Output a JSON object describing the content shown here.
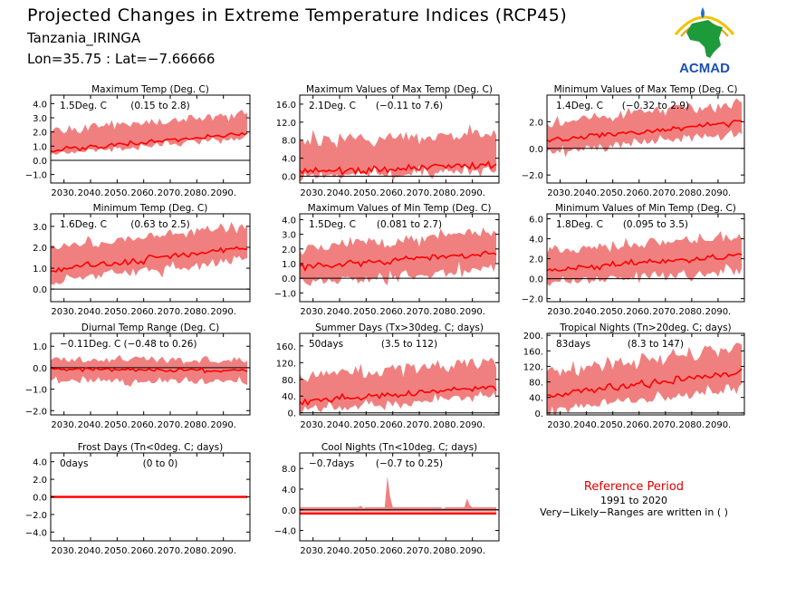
{
  "header": {
    "title": "Projected Changes in Extreme Temperature Indices (RCP45)",
    "region": "Tanzania_IRINGA",
    "coords": "Lon=35.75 : Lat=−7.66666"
  },
  "logo": {
    "text": "ACMAD",
    "icon": "africa-map-logo"
  },
  "reference": {
    "title": "Reference Period",
    "period": "1991 to 2020",
    "note": "Very−Likely−Ranges are written in ( )"
  },
  "colors": {
    "band": "#f08080",
    "line": "#ff0000",
    "zero": "#000000"
  },
  "chart_data": [
    {
      "type": "line",
      "title": "Maximum Temp (Deg. C)",
      "annotation": "1.5Deg. C",
      "range": "(0.15 to 2.8)",
      "x_ticks": [
        "2030.",
        "2040.",
        "2050.",
        "2060.",
        "2070.",
        "2080.",
        "2090."
      ],
      "xlim": [
        2025,
        2100
      ],
      "y_ticks": [
        "4.0",
        "3.0",
        "2.0",
        "1.0",
        "0.0",
        "−1.0"
      ],
      "ylim": [
        -1.6,
        4.6
      ],
      "trend": {
        "start": 0.7,
        "end": 1.9
      },
      "band": {
        "lower": -0.2,
        "upper": 1.3
      }
    },
    {
      "type": "line",
      "title": "Maximum Values of Max Temp (Deg. C)",
      "annotation": "2.1Deg. C",
      "range": "(−0.11 to 7.6)",
      "x_ticks": [
        "2030.",
        "2040.",
        "2050.",
        "2060.",
        "2070.",
        "2080.",
        "2090."
      ],
      "xlim": [
        2025,
        2100
      ],
      "y_ticks": [
        "16.0",
        "12.0",
        "8.0",
        "4.0",
        "0.0"
      ],
      "ylim": [
        -1.5,
        18
      ],
      "trend": {
        "start": 1.0,
        "end": 2.5
      },
      "band": {
        "lower": -1.0,
        "upper": 6.5
      }
    },
    {
      "type": "line",
      "title": "Minimum Values of Max Temp (Deg. C)",
      "annotation": "1.4Deg. C",
      "range": "(−0.32 to 2.9)",
      "x_ticks": [
        "2030.",
        "2040.",
        "2050.",
        "2060.",
        "2070.",
        "2080.",
        "2090."
      ],
      "xlim": [
        2025,
        2100
      ],
      "y_ticks": [
        "2.0",
        "0.0",
        "−2.0"
      ],
      "ylim": [
        -2.6,
        4.0
      ],
      "trend": {
        "start": 0.6,
        "end": 2.0
      },
      "band": {
        "lower": -0.8,
        "upper": 1.3
      }
    },
    {
      "type": "line",
      "title": "Minimum Temp (Deg. C)",
      "annotation": "1.6Deg. C",
      "range": "(0.63 to 2.5)",
      "x_ticks": [
        "2030.",
        "2040.",
        "2050.",
        "2060.",
        "2070.",
        "2080.",
        "2090."
      ],
      "xlim": [
        2025,
        2100
      ],
      "y_ticks": [
        "3.0",
        "2.0",
        "1.0",
        "0.0"
      ],
      "ylim": [
        -0.6,
        3.6
      ],
      "trend": {
        "start": 0.9,
        "end": 2.0
      },
      "band": {
        "lower": -0.5,
        "upper": 1.0
      }
    },
    {
      "type": "line",
      "title": "Maximum Values of Min Temp (Deg. C)",
      "annotation": "1.5Deg. C",
      "range": "(0.081 to 2.7)",
      "x_ticks": [
        "2030.",
        "2040.",
        "2050.",
        "2060.",
        "2070.",
        "2080.",
        "2090."
      ],
      "xlim": [
        2025,
        2100
      ],
      "y_ticks": [
        "4.0",
        "3.0",
        "2.0",
        "1.0",
        "0.0",
        "−1.0"
      ],
      "ylim": [
        -1.6,
        4.4
      ],
      "trend": {
        "start": 0.7,
        "end": 1.8
      },
      "band": {
        "lower": -1.0,
        "upper": 1.3
      }
    },
    {
      "type": "line",
      "title": "Minimum Values of Min Temp (Deg. C)",
      "annotation": "1.8Deg. C",
      "range": "(0.095 to 3.5)",
      "x_ticks": [
        "2030.",
        "2040.",
        "2050.",
        "2060.",
        "2070.",
        "2080.",
        "2090."
      ],
      "xlim": [
        2025,
        2100
      ],
      "y_ticks": [
        "6.0",
        "4.0",
        "2.0",
        "0.0",
        "−2.0"
      ],
      "ylim": [
        -2.3,
        6.5
      ],
      "trend": {
        "start": 0.9,
        "end": 2.3
      },
      "band": {
        "lower": -1.3,
        "upper": 1.8
      }
    },
    {
      "type": "line",
      "title": "Diurnal Temp Range (Deg. C)",
      "annotation": "−0.11Deg. C",
      "range": "(−0.48 to 0.26)",
      "x_ticks": [
        "2030.",
        "2040.",
        "2050.",
        "2060.",
        "2070.",
        "2080.",
        "2090."
      ],
      "xlim": [
        2025,
        2100
      ],
      "y_ticks": [
        "1.0",
        "0.0",
        "−1.0",
        "−2.0"
      ],
      "ylim": [
        -2.2,
        1.6
      ],
      "trend": {
        "start": -0.05,
        "end": -0.15
      },
      "band": {
        "lower": -0.5,
        "upper": 0.45
      }
    },
    {
      "type": "line",
      "title": "Summer Days (Tx>30deg. C; days)",
      "annotation": "50days",
      "range": "(3.5 to 112)",
      "x_ticks": [
        "2030.",
        "2040.",
        "2050.",
        "2060.",
        "2070.",
        "2080.",
        "2090."
      ],
      "xlim": [
        2025,
        2100
      ],
      "y_ticks": [
        "160.",
        "120.",
        "80.",
        "40.",
        "0."
      ],
      "ylim": [
        -5,
        190
      ],
      "trend": {
        "start": 28,
        "end": 62
      },
      "band": {
        "lower": -20,
        "upper": 55
      }
    },
    {
      "type": "line",
      "title": "Tropical Nights (Tn>20deg. C; days)",
      "annotation": "83days",
      "range": "(8.3 to 147)",
      "x_ticks": [
        "2030.",
        "2040.",
        "2050.",
        "2060.",
        "2070.",
        "2080.",
        "2090."
      ],
      "xlim": [
        2025,
        2100
      ],
      "y_ticks": [
        "200.",
        "160.",
        "120.",
        "80.",
        "40.",
        "0."
      ],
      "ylim": [
        -5,
        205
      ],
      "trend": {
        "start": 45,
        "end": 108
      },
      "band": {
        "lower": -38,
        "upper": 55
      }
    },
    {
      "type": "line",
      "title": "Frost Days (Tn<0deg. C; days)",
      "annotation": "0days",
      "range": "(0 to 0)",
      "x_ticks": [
        "2030.",
        "2040.",
        "2050.",
        "2060.",
        "2070.",
        "2080.",
        "2090."
      ],
      "xlim": [
        2025,
        2100
      ],
      "y_ticks": [
        "4.0",
        "2.0",
        "0.0",
        "−2.0",
        "−4.0"
      ],
      "ylim": [
        -5,
        5
      ],
      "trend": {
        "start": 0,
        "end": 0
      },
      "band": {
        "lower": 0,
        "upper": 0
      }
    },
    {
      "type": "line",
      "title": "Cool Nights (Tn<10deg. C; days)",
      "annotation": "−0.7days",
      "range": "(−0.7 to 0.25)",
      "x_ticks": [
        "2030.",
        "2040.",
        "2050.",
        "2060.",
        "2070.",
        "2080.",
        "2090."
      ],
      "xlim": [
        2025,
        2100
      ],
      "y_ticks": [
        "8.0",
        "4.0",
        "0.0",
        "−4.0"
      ],
      "ylim": [
        -6,
        11
      ],
      "trend": {
        "start": -0.7,
        "end": -0.7
      },
      "band": {
        "lower": -0.3,
        "upper": 0.5
      },
      "spikes": [
        {
          "x": 2058,
          "y": 6.5
        },
        {
          "x": 2088,
          "y": 2.2
        },
        {
          "x": 2048,
          "y": 0.8
        },
        {
          "x": 2078,
          "y": 0.5
        }
      ]
    }
  ]
}
